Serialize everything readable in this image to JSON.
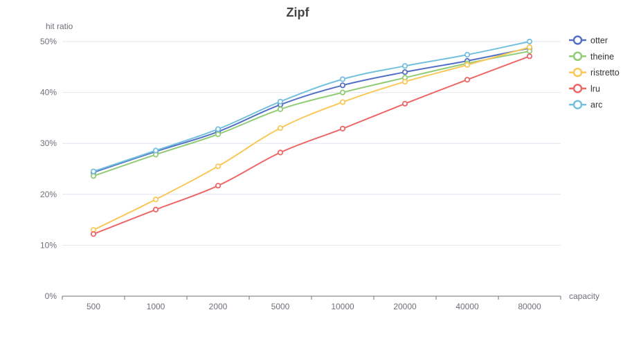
{
  "title": "Zipf",
  "chart_data": {
    "type": "line",
    "title": "Zipf",
    "xlabel": "capacity",
    "ylabel": "hit ratio",
    "categories": [
      "500",
      "1000",
      "2000",
      "5000",
      "10000",
      "20000",
      "40000",
      "80000"
    ],
    "series": [
      {
        "name": "otter",
        "color": "#5470c6",
        "values": [
          24.3,
          28.4,
          32.3,
          37.6,
          41.4,
          44.0,
          46.2,
          48.7
        ]
      },
      {
        "name": "theine",
        "color": "#91cc75",
        "values": [
          23.6,
          27.8,
          31.8,
          36.7,
          40.0,
          42.9,
          45.7,
          48.1
        ]
      },
      {
        "name": "ristretto",
        "color": "#fac858",
        "values": [
          13.0,
          19.0,
          25.5,
          33.0,
          38.1,
          42.1,
          45.4,
          48.9
        ]
      },
      {
        "name": "lru",
        "color": "#ee6666",
        "values": [
          12.2,
          17.0,
          21.7,
          28.2,
          32.9,
          37.8,
          42.5,
          47.1
        ]
      },
      {
        "name": "arc",
        "color": "#73c0de",
        "values": [
          24.5,
          28.6,
          32.8,
          38.2,
          42.6,
          45.2,
          47.4,
          50.0
        ]
      }
    ],
    "y_ticks": [
      {
        "label": "0%",
        "value": 0
      },
      {
        "label": "10%",
        "value": 10
      },
      {
        "label": "20%",
        "value": 20
      },
      {
        "label": "30%",
        "value": 30
      },
      {
        "label": "40%",
        "value": 40
      },
      {
        "label": "50%",
        "value": 50
      }
    ],
    "ylim": [
      0,
      50
    ],
    "grid": true,
    "legend_position": "right",
    "marker_style": "empty-circle"
  },
  "colors": {
    "background": "#ffffff",
    "gridline": "#e0e6f1",
    "axis_line": "#6e7079",
    "tick_label": "#6e7079",
    "axis_name": "#6e7079",
    "title": "#464646",
    "legend_text": "#333333"
  }
}
